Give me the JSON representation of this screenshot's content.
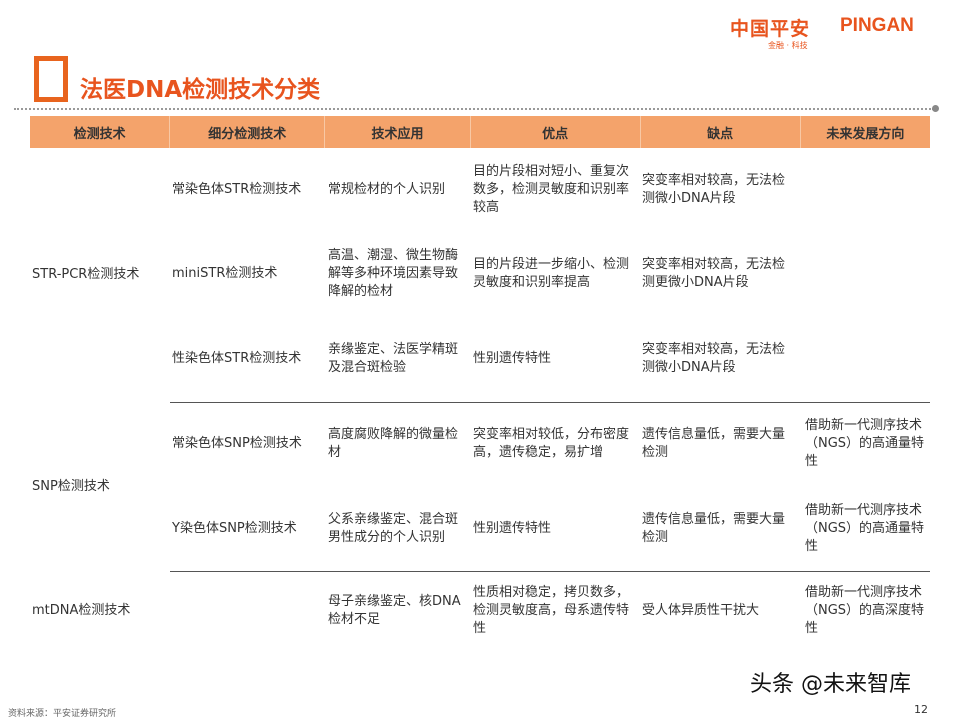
{
  "logo": {
    "cn": "中国平安",
    "en": "PINGAN",
    "sub": "金融 · 科技"
  },
  "title": "法医DNA检测技术分类",
  "headers": [
    "检测技术",
    "细分检测技术",
    "技术应用",
    "优点",
    "缺点",
    "未来发展方向"
  ],
  "groups": [
    "STR-PCR检测技术",
    "SNP检测技术",
    "mtDNA检测技术"
  ],
  "rows": [
    [
      "常染色体STR检测技术",
      "常规检材的个人识别",
      "目的片段相对短小、重复次数多，检测灵敏度和识别率较高",
      "突变率相对较高，无法检测微小DNA片段",
      ""
    ],
    [
      "miniSTR检测技术",
      "高温、潮湿、微生物酶解等多种环境因素导致降解的检材",
      "目的片段进一步缩小、检测灵敏度和识别率提高",
      "突变率相对较高，无法检测更微小DNA片段",
      ""
    ],
    [
      "性染色体STR检测技术",
      "亲缘鉴定、法医学精斑及混合斑检验",
      "性别遗传特性",
      "突变率相对较高，无法检测微小DNA片段",
      ""
    ],
    [
      "常染色体SNP检测技术",
      "高度腐败降解的微量检材",
      "突变率相对较低，分布密度高，遗传稳定，易扩增",
      "遗传信息量低，需要大量检测",
      "借助新一代测序技术（NGS）的高通量特性"
    ],
    [
      "Y染色体SNP检测技术",
      "父系亲缘鉴定、混合斑男性成分的个人识别",
      "性别遗传特性",
      "遗传信息量低，需要大量检测",
      "借助新一代测序技术（NGS）的高通量特性"
    ],
    [
      "",
      "母子亲缘鉴定、核DNA检材不足",
      "性质相对稳定，拷贝数多，检测灵敏度高，母系遗传特性",
      "受人体异质性干扰大",
      "借助新一代测序技术（NGS）的高深度特性"
    ]
  ],
  "source": "资料来源：平安证券研究所",
  "watermark": "头条 @未来智库",
  "page": "12",
  "colors": {
    "accent": "#e8541e",
    "header_bg": "#f4a36b"
  }
}
